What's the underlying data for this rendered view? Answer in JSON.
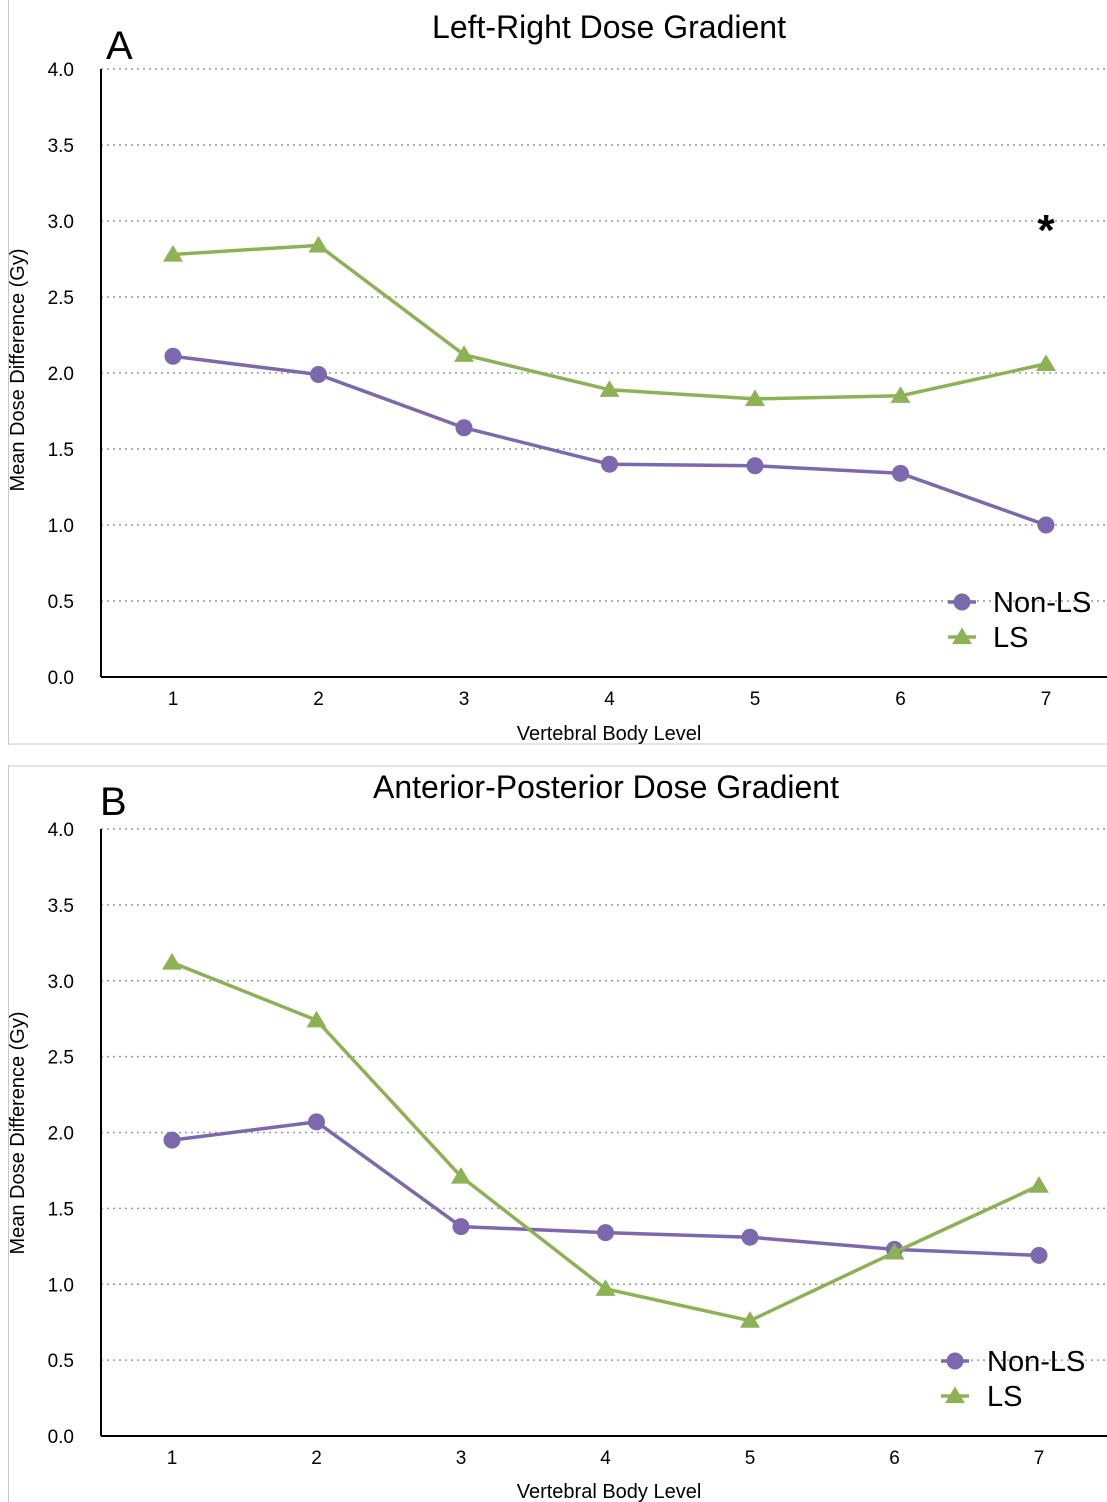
{
  "chart_data": [
    {
      "type": "line",
      "panel_label": "A",
      "title": "Left-Right Dose Gradient",
      "xlabel": "Vertebral Body Level",
      "ylabel": "Mean Dose Difference (Gy)",
      "x": [
        1,
        2,
        3,
        4,
        5,
        6,
        7
      ],
      "x_tick_labels": [
        "1",
        "2",
        "3",
        "4",
        "5",
        "6",
        "7"
      ],
      "ylim": [
        0,
        4
      ],
      "y_ticks": [
        0,
        0.5,
        1,
        1.5,
        2,
        2.5,
        3,
        3.5,
        4
      ],
      "y_tick_labels": [
        "0.0",
        "0.5",
        "1.0",
        "1.5",
        "2.0",
        "2.5",
        "3.0",
        "3.5",
        "4.0"
      ],
      "grid": "horizontal dotted",
      "legend_position": "bottom-right",
      "annotation": "*",
      "series": [
        {
          "name": "Non-LS",
          "marker": "circle",
          "color": "#7b68ad",
          "values": [
            2.11,
            1.99,
            1.64,
            1.4,
            1.39,
            1.34,
            1.0
          ]
        },
        {
          "name": "LS",
          "marker": "triangle",
          "color": "#8db255",
          "values": [
            2.78,
            2.84,
            2.12,
            1.89,
            1.83,
            1.85,
            2.06
          ]
        }
      ]
    },
    {
      "type": "line",
      "panel_label": "B",
      "title": "Anterior-Posterior Dose Gradient",
      "xlabel": "Vertebral Body Level",
      "ylabel": "Mean Dose Difference (Gy)",
      "x": [
        1,
        2,
        3,
        4,
        5,
        6,
        7
      ],
      "x_tick_labels": [
        "1",
        "2",
        "3",
        "4",
        "5",
        "6",
        "7"
      ],
      "ylim": [
        0,
        4
      ],
      "y_ticks": [
        0,
        0.5,
        1,
        1.5,
        2,
        2.5,
        3,
        3.5,
        4
      ],
      "y_tick_labels": [
        "0.0",
        "0.5",
        "1.0",
        "1.5",
        "2.0",
        "2.5",
        "3.0",
        "3.5",
        "4.0"
      ],
      "grid": "horizontal dotted",
      "legend_position": "bottom-right",
      "annotation": "",
      "series": [
        {
          "name": "Non-LS",
          "marker": "circle",
          "color": "#7b68ad",
          "values": [
            1.95,
            2.07,
            1.38,
            1.34,
            1.31,
            1.23,
            1.19
          ]
        },
        {
          "name": "LS",
          "marker": "triangle",
          "color": "#8db255",
          "values": [
            3.12,
            2.74,
            1.71,
            0.97,
            0.76,
            1.21,
            1.65
          ]
        }
      ]
    }
  ]
}
